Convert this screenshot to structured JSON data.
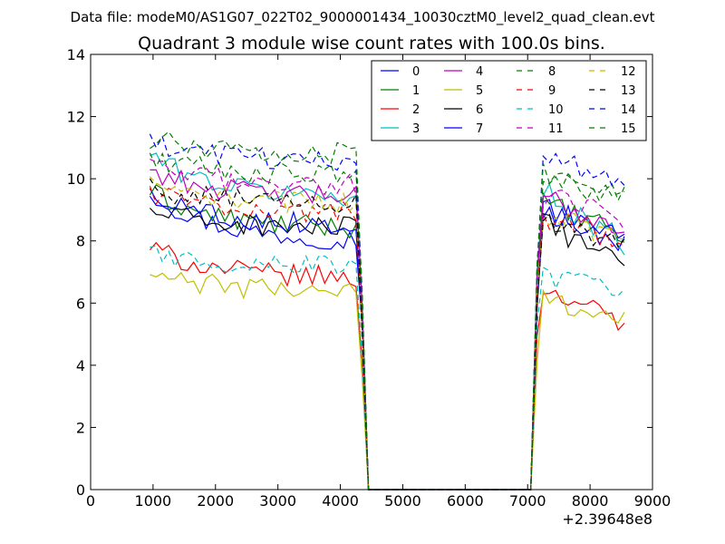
{
  "chart_data": {
    "type": "line",
    "suptitle": "Data file: modeM0/AS1G07_022T02_9000001434_10030cztM0_level2_quad_clean.evt",
    "title": "Quadrant 3 module wise count rates with 100.0s bins.",
    "xlabel": "",
    "ylabel": "",
    "x_offset_label": "+2.39648e8",
    "xlim": [
      0,
      9000
    ],
    "ylim": [
      0,
      14
    ],
    "x_ticks": [
      "0",
      "1000",
      "2000",
      "3000",
      "4000",
      "5000",
      "6000",
      "7000",
      "8000",
      "9000"
    ],
    "y_ticks": [
      "0",
      "2",
      "4",
      "6",
      "8",
      "10",
      "12",
      "14"
    ],
    "grid": false,
    "legend_position": "top-right",
    "legend_columns": 4,
    "segments": [
      {
        "start": 950,
        "end": 4450,
        "step": 100
      },
      {
        "start": 7050,
        "end": 8500,
        "step": 100
      }
    ],
    "series": [
      {
        "name": "0",
        "color": "#0000ff",
        "dash": "solid",
        "gap": 7.4,
        "level": [
          9.6,
          9.1
        ],
        "start": [
          1.6,
          1.2
        ]
      },
      {
        "name": "1",
        "color": "#008000",
        "dash": "solid",
        "gap": 7.3,
        "level": [
          9.6,
          9.2
        ],
        "start": [
          1.2,
          1.0
        ]
      },
      {
        "name": "2",
        "color": "#ff0000",
        "dash": "solid",
        "gap": 5.6,
        "level": [
          7.8,
          6.6
        ],
        "start": [
          1.0,
          1.3
        ]
      },
      {
        "name": "3",
        "color": "#00bfbf",
        "dash": "solid",
        "gap": 8.1,
        "level": [
          10.8,
          9.6
        ],
        "start": [
          1.4,
          1.6
        ]
      },
      {
        "name": "4",
        "color": "#bf00bf",
        "dash": "solid",
        "gap": 8.0,
        "level": [
          10.3,
          9.4
        ],
        "start": [
          0.9,
          1.0
        ]
      },
      {
        "name": "5",
        "color": "#bfbf00",
        "dash": "solid",
        "gap": 4.8,
        "level": [
          6.9,
          6.2
        ],
        "start": [
          0.5,
          0.7
        ]
      },
      {
        "name": "6",
        "color": "#000000",
        "dash": "solid",
        "gap": 6.9,
        "level": [
          9.0,
          8.5
        ],
        "start": [
          0.6,
          1.0
        ]
      },
      {
        "name": "7",
        "color": "#0000ff",
        "dash": "solid",
        "gap": 7.2,
        "level": [
          9.6,
          9.0
        ],
        "start": [
          1.1,
          0.8
        ]
      },
      {
        "name": "8",
        "color": "#008000",
        "dash": "dashed",
        "gap": 8.6,
        "level": [
          10.7,
          10.0
        ],
        "start": [
          0.6,
          0.6
        ]
      },
      {
        "name": "9",
        "color": "#ff0000",
        "dash": "dashed",
        "gap": 7.7,
        "level": [
          9.6,
          8.8
        ],
        "start": [
          0.7,
          0.8
        ]
      },
      {
        "name": "10",
        "color": "#00bfbf",
        "dash": "dashed",
        "gap": 6.0,
        "level": [
          7.6,
          6.9
        ],
        "start": [
          0.4,
          0.6
        ]
      },
      {
        "name": "11",
        "color": "#bf00bf",
        "dash": "dashed",
        "gap": 8.2,
        "level": [
          10.4,
          9.5
        ],
        "start": [
          0.6,
          0.8
        ]
      },
      {
        "name": "12",
        "color": "#bfbf00",
        "dash": "dashed",
        "gap": 7.3,
        "level": [
          9.8,
          8.9
        ],
        "start": [
          0.6,
          0.8
        ]
      },
      {
        "name": "13",
        "color": "#000000",
        "dash": "dashed",
        "gap": 7.0,
        "level": [
          9.7,
          8.7
        ],
        "start": [
          0.5,
          0.9
        ]
      },
      {
        "name": "14",
        "color": "#0000ff",
        "dash": "dashed",
        "gap": 8.3,
        "level": [
          11.1,
          10.6
        ],
        "start": [
          0.5,
          0.6
        ]
      },
      {
        "name": "15",
        "color": "#008000",
        "dash": "dashed",
        "gap": 8.6,
        "level": [
          11.3,
          10.2
        ],
        "start": [
          0.5,
          0.7
        ]
      }
    ]
  }
}
